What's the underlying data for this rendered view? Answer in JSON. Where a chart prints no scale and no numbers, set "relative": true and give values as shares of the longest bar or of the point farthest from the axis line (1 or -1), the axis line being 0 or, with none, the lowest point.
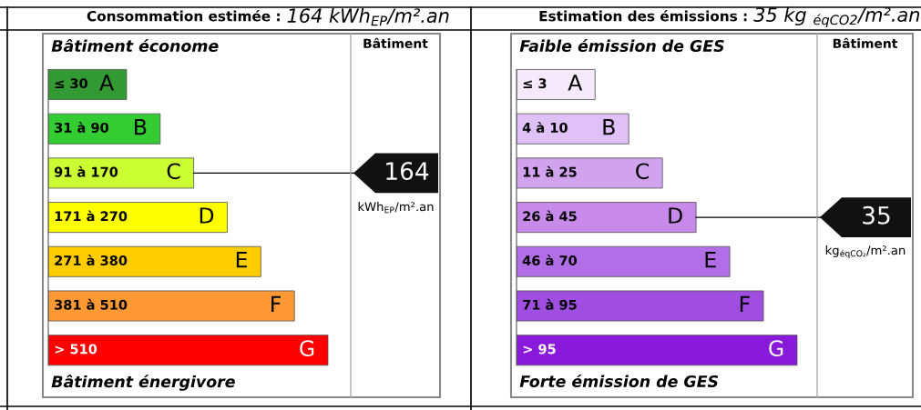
{
  "chart_data": [
    {
      "type": "bar",
      "orientation": "horizontal",
      "relative": true,
      "title": "Consommation estimée :",
      "subtitle": "164 kWh$_{EP}$/m².an",
      "categories": [
        "≤ 30",
        "31 à 90",
        "91 à 170",
        "171 à 270",
        "271 à 380",
        "381 à 510",
        "> 510"
      ],
      "values": [
        0.28,
        0.4,
        0.52,
        0.64,
        0.76,
        0.88,
        1
      ],
      "colors": [
        "#339933",
        "#33cc33",
        "#ccff33",
        "#ffff00",
        "#ffcc00",
        "#ff9933",
        "#ff0000"
      ],
      "ref_lines": [
        {
          "axis": "y",
          "value": "91 à 170",
          "label": "164"
        }
      ],
      "annotations": [
        "Bâtiment économe",
        "Bâtiment énergivore",
        "Bâtiment",
        "kWh$_{EP}$/m².an",
        "A",
        "B",
        "C",
        "D",
        "E",
        "F",
        "G"
      ]
    },
    {
      "type": "bar",
      "orientation": "horizontal",
      "relative": true,
      "title": "Estimation des émissions :",
      "subtitle": "35 kg $_{éqCO2}$/m².an",
      "categories": [
        "≤ 3",
        "4 à 10",
        "11 à 25",
        "26 à 45",
        "46 à 70",
        "71 à 95",
        "> 95"
      ],
      "values": [
        0.28,
        0.4,
        0.52,
        0.64,
        0.76,
        0.88,
        1
      ],
      "colors": [
        "#f5e9fc",
        "#dfc1f7",
        "#d1a3ef",
        "#c78aeb",
        "#b26ee6",
        "#a04ee2",
        "#8a1ad9"
      ],
      "ref_lines": [
        {
          "axis": "y",
          "value": "26 à 45",
          "label": "35"
        }
      ],
      "annotations": [
        "Faible émission de GES",
        "Forte émission de GES",
        "Bâtiment",
        "kg$_{éqCO₂}$/m².an",
        "A",
        "B",
        "C",
        "D",
        "E",
        "F",
        "G"
      ]
    }
  ]
}
